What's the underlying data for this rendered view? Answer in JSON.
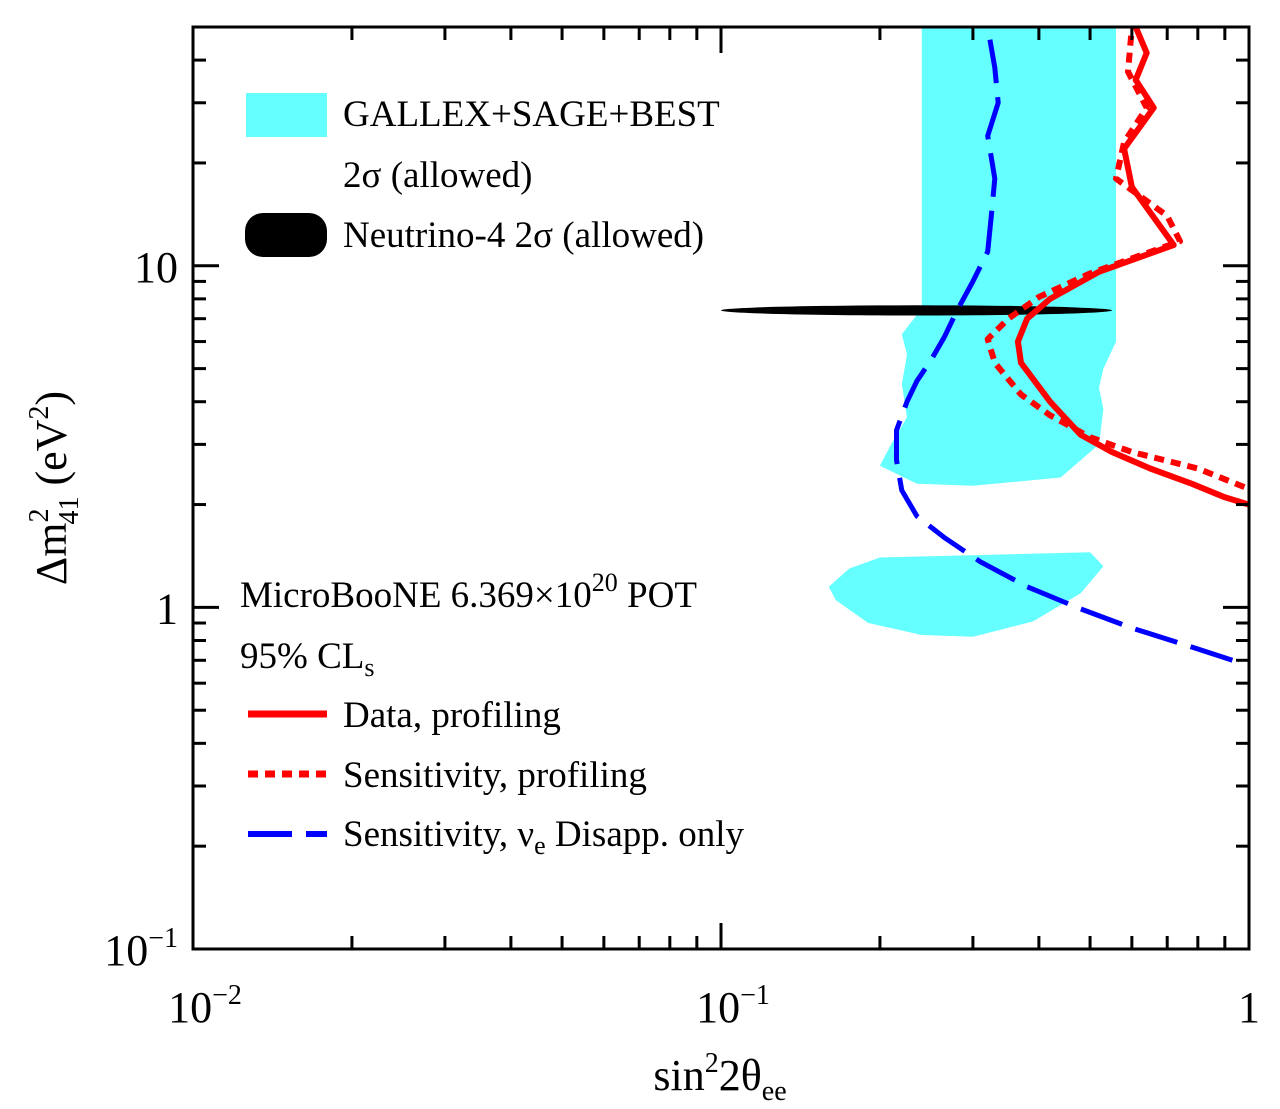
{
  "chart_data": {
    "type": "line",
    "x_scale": "log",
    "y_scale": "log",
    "xlim": [
      0.01,
      1
    ],
    "ylim": [
      0.1,
      50
    ],
    "grid": false,
    "xlabel": {
      "main": "sin",
      "sup": "2",
      "rest": "2θ",
      "sub": "ee"
    },
    "ylabel": {
      "main": "Δm",
      "sup": "2",
      "sub": "41",
      "rest": " (eV",
      "sup2": "2",
      "end": ")"
    },
    "x_ticks": [
      {
        "value": 0.01,
        "base": "10",
        "exp": "−2"
      },
      {
        "value": 0.1,
        "base": "10",
        "exp": "−1"
      },
      {
        "value": 1,
        "base": "1",
        "exp": ""
      }
    ],
    "y_ticks": [
      {
        "value": 0.1,
        "base": "10",
        "exp": "−1"
      },
      {
        "value": 1,
        "base": "1",
        "exp": ""
      },
      {
        "value": 10,
        "base": "10",
        "exp": ""
      }
    ],
    "legend_top": [
      {
        "label": "GALLEX+SAGE+BEST",
        "color": "#66ffff",
        "kind": "box"
      },
      {
        "label": "2σ (allowed)",
        "color": "",
        "kind": "none"
      },
      {
        "label": "Neutrino-4 2σ (allowed)",
        "color": "#000000",
        "kind": "ellipse"
      }
    ],
    "annotation": {
      "line1_main": "MicroBooNE  6.369×10",
      "line1_sup": "20",
      "line1_end": " POT",
      "line2_main": "95% CL",
      "line2_sub": "s"
    },
    "legend_bottom": [
      {
        "label": "Data, profiling",
        "color": "#ff0000",
        "dash": "solid"
      },
      {
        "label": "Sensitivity, profiling",
        "color": "#ff0000",
        "dash": "dotted"
      },
      {
        "label_main": "Sensitivity, ν",
        "label_sub": "e",
        "label_end": " Disapp. only",
        "color": "#0000ff",
        "dash": "dashed"
      }
    ],
    "series": [
      {
        "name": "Data, profiling",
        "color": "#ff0000",
        "style": "solid",
        "points": [
          [
            1.0,
            2.0
          ],
          [
            0.9,
            2.1
          ],
          [
            0.78,
            2.3
          ],
          [
            0.65,
            2.55
          ],
          [
            0.55,
            2.85
          ],
          [
            0.48,
            3.2
          ],
          [
            0.42,
            4.0
          ],
          [
            0.37,
            5.2
          ],
          [
            0.365,
            6.0
          ],
          [
            0.38,
            7.0
          ],
          [
            0.42,
            8.0
          ],
          [
            0.52,
            9.6
          ],
          [
            0.72,
            11.5
          ],
          [
            0.6,
            17.0
          ],
          [
            0.58,
            22.0
          ],
          [
            0.66,
            29.0
          ],
          [
            0.61,
            35.0
          ],
          [
            0.64,
            42.0
          ],
          [
            0.61,
            50.0
          ]
        ]
      },
      {
        "name": "Sensitivity, profiling",
        "color": "#ff0000",
        "style": "dotted",
        "points": [
          [
            0.98,
            2.25
          ],
          [
            0.8,
            2.55
          ],
          [
            0.6,
            2.85
          ],
          [
            0.5,
            3.15
          ],
          [
            0.42,
            3.65
          ],
          [
            0.37,
            4.2
          ],
          [
            0.33,
            5.2
          ],
          [
            0.32,
            6.1
          ],
          [
            0.35,
            7.0
          ],
          [
            0.4,
            8.1
          ],
          [
            0.5,
            9.5
          ],
          [
            0.74,
            11.8
          ],
          [
            0.7,
            14.0
          ],
          [
            0.56,
            18.0
          ],
          [
            0.58,
            23.0
          ],
          [
            0.64,
            29.0
          ],
          [
            0.59,
            37.0
          ],
          [
            0.6,
            50.0
          ]
        ]
      },
      {
        "name": "Sensitivity, νe Disapp. only",
        "color": "#0000ff",
        "style": "dashed",
        "points": [
          [
            0.93,
            0.7
          ],
          [
            0.75,
            0.78
          ],
          [
            0.6,
            0.87
          ],
          [
            0.48,
            0.99
          ],
          [
            0.38,
            1.15
          ],
          [
            0.31,
            1.36
          ],
          [
            0.265,
            1.6
          ],
          [
            0.235,
            1.85
          ],
          [
            0.22,
            2.2
          ],
          [
            0.215,
            2.7
          ],
          [
            0.215,
            3.3
          ],
          [
            0.225,
            4.0
          ],
          [
            0.235,
            4.6
          ],
          [
            0.25,
            5.3
          ],
          [
            0.265,
            6.2
          ],
          [
            0.28,
            7.4
          ],
          [
            0.3,
            9.0
          ],
          [
            0.32,
            11.0
          ],
          [
            0.325,
            14.0
          ],
          [
            0.33,
            18.0
          ],
          [
            0.32,
            24.0
          ],
          [
            0.335,
            30.0
          ],
          [
            0.33,
            38.0
          ],
          [
            0.32,
            50.0
          ]
        ]
      }
    ],
    "regions": [
      {
        "name": "GALLEX+SAGE+BEST 2σ (allowed)",
        "color": "#66ffff",
        "polygon": [
          [
            0.24,
            50.0
          ],
          [
            0.56,
            50.0
          ],
          [
            0.56,
            6.0
          ],
          [
            0.53,
            5.0
          ],
          [
            0.52,
            4.4
          ],
          [
            0.53,
            3.8
          ],
          [
            0.52,
            3.0
          ],
          [
            0.44,
            2.4
          ],
          [
            0.3,
            2.27
          ],
          [
            0.235,
            2.3
          ],
          [
            0.2,
            2.6
          ],
          [
            0.21,
            3.0
          ],
          [
            0.225,
            3.6
          ],
          [
            0.22,
            4.5
          ],
          [
            0.225,
            5.5
          ],
          [
            0.22,
            6.3
          ],
          [
            0.24,
            7.5
          ]
        ]
      },
      {
        "name": "GALLEX+SAGE+BEST 2σ (allowed), low island",
        "color": "#66ffff",
        "polygon": [
          [
            0.2,
            1.4
          ],
          [
            0.5,
            1.45
          ],
          [
            0.53,
            1.32
          ],
          [
            0.48,
            1.1
          ],
          [
            0.39,
            0.91
          ],
          [
            0.3,
            0.82
          ],
          [
            0.24,
            0.83
          ],
          [
            0.19,
            0.9
          ],
          [
            0.165,
            1.05
          ],
          [
            0.16,
            1.15
          ],
          [
            0.175,
            1.3
          ]
        ]
      },
      {
        "name": "Neutrino-4 2σ (allowed)",
        "color": "#000000",
        "ellipse": {
          "x_from": 0.1,
          "x_to": 0.55,
          "y": 7.4,
          "y_halfspan_factor": 1.035
        }
      }
    ]
  }
}
